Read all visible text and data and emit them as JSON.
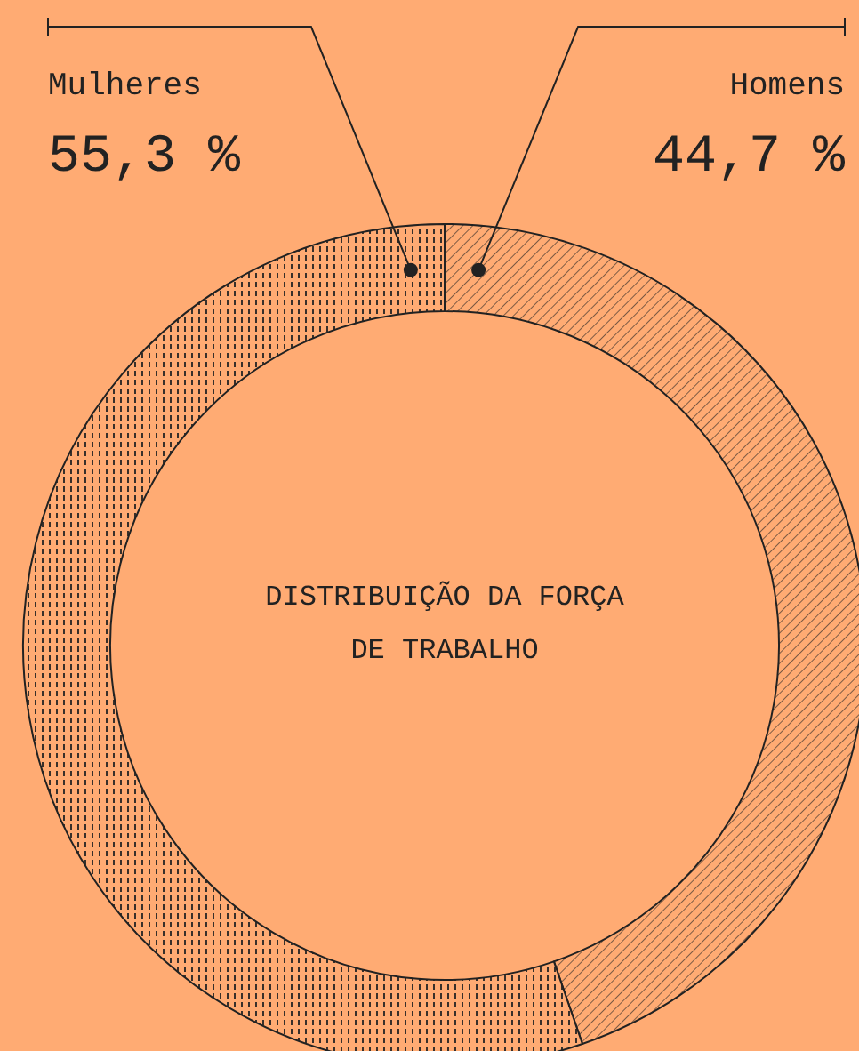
{
  "chart_data": {
    "type": "donut",
    "title": "DISTRIBUIÇÃO DA FORÇA DE TRABALHO",
    "categories": [
      "Homens",
      "Mulheres"
    ],
    "values": [
      44.7,
      55.3
    ],
    "value_labels": [
      "44,7 %",
      "55,3 %"
    ],
    "colors": [
      "#ffab73",
      "#ffab73"
    ],
    "legend": "top"
  }
}
